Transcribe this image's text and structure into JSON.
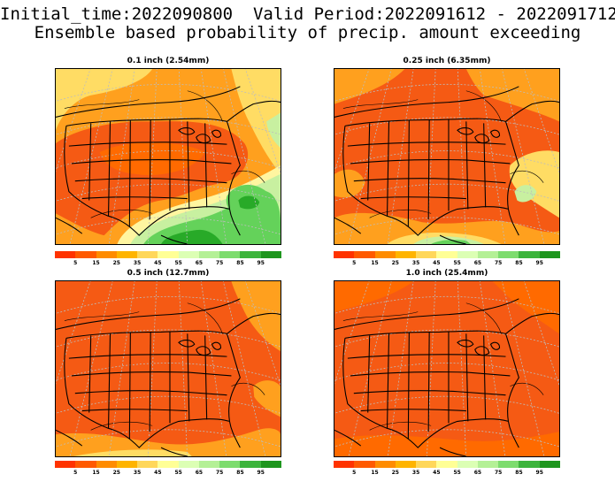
{
  "header": {
    "line1": "Initial_time:2022090800  Valid Period:2022091612 - 2022091712",
    "line2": "Ensemble based probability of precip. amount exceeding"
  },
  "panels": [
    {
      "title": "0.1 inch (2.54mm)",
      "variant": "p01"
    },
    {
      "title": "0.25 inch (6.35mm)",
      "variant": "p025"
    },
    {
      "title": "0.5 inch (12.7mm)",
      "variant": "p05"
    },
    {
      "title": "1.0 inch (25.4mm)",
      "variant": "p10"
    }
  ],
  "colorbar": {
    "labels": [
      "5",
      "15",
      "25",
      "35",
      "45",
      "55",
      "65",
      "75",
      "85",
      "95"
    ],
    "colors": [
      "#ff3300",
      "#ff5a00",
      "#ff8c00",
      "#ffb400",
      "#ffd75a",
      "#ffff96",
      "#dcffb4",
      "#b4f096",
      "#7ddc6e",
      "#3cb43c",
      "#1e961e"
    ]
  },
  "colors": {
    "base_orange": "#f55a14",
    "deep_orange": "#ff6a00",
    "light_orange": "#ffa01e",
    "yellow": "#ffdc64",
    "light_yellow": "#fff5a0",
    "pale_green": "#c8f0a0",
    "green": "#64d25a",
    "dark_green": "#28aa28",
    "grid": "#bdbdbd",
    "border": "#000000"
  }
}
